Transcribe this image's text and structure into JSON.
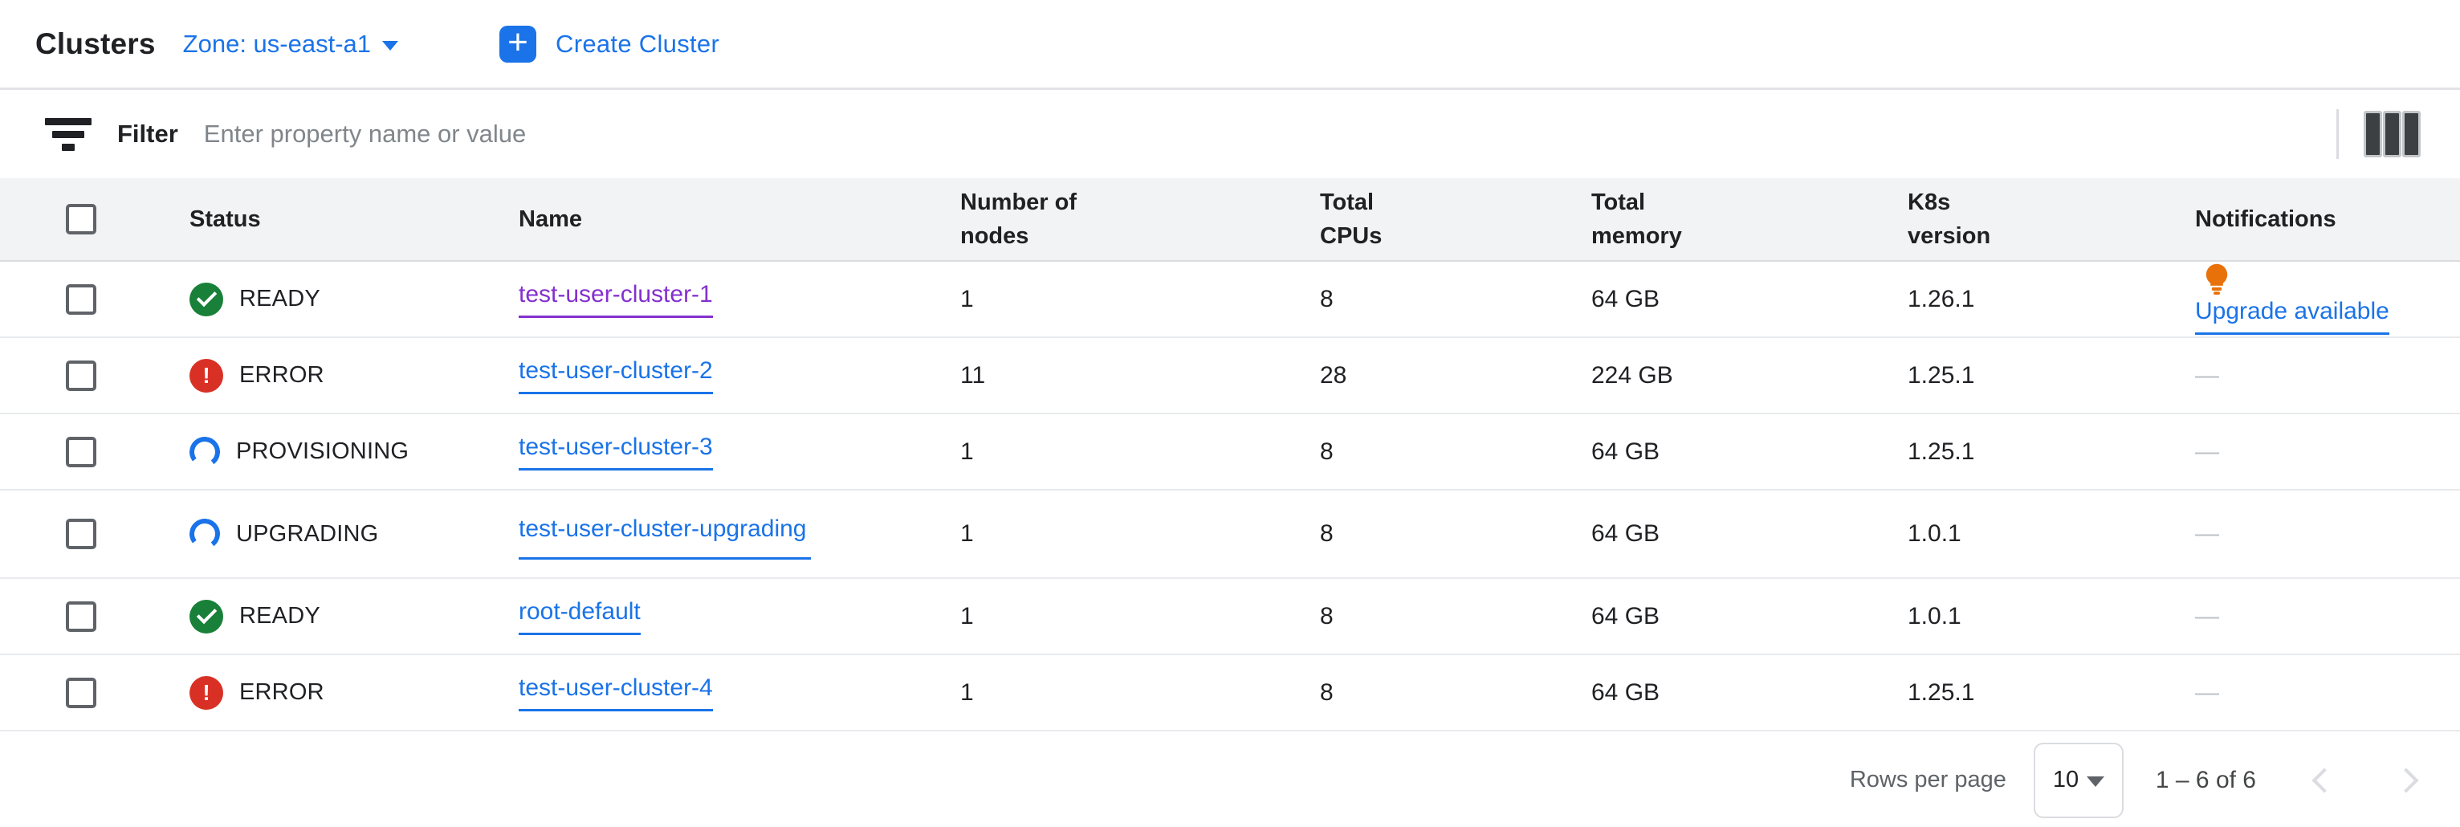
{
  "header": {
    "title": "Clusters",
    "zone_label": "Zone: us-east-a1",
    "create_button_label": "Create Cluster"
  },
  "filter": {
    "label": "Filter",
    "placeholder": "Enter property name or value"
  },
  "table": {
    "columns": [
      "Status",
      "Name",
      "Number of nodes",
      "Total CPUs",
      "Total memory",
      "K8s version",
      "Notifications"
    ],
    "rows": [
      {
        "status": "READY",
        "status_kind": "ready",
        "name": "test-user-cluster-1",
        "visited": true,
        "name_wrap": false,
        "nodes": "1",
        "cpus": "8",
        "memory": "64 GB",
        "k8s": "1.26.1",
        "notification": "Upgrade available",
        "notification_type": "upgrade"
      },
      {
        "status": "ERROR",
        "status_kind": "error",
        "name": "test-user-cluster-2",
        "visited": false,
        "name_wrap": false,
        "nodes": "11",
        "cpus": "28",
        "memory": "224 GB",
        "k8s": "1.25.1",
        "notification": "—",
        "notification_type": "none"
      },
      {
        "status": "PROVISIONING",
        "status_kind": "progress",
        "name": "test-user-cluster-3",
        "visited": false,
        "name_wrap": false,
        "nodes": "1",
        "cpus": "8",
        "memory": "64 GB",
        "k8s": "1.25.1",
        "notification": "—",
        "notification_type": "none"
      },
      {
        "status": "UPGRADING",
        "status_kind": "progress",
        "name": "test-user-cluster-upgrading",
        "visited": false,
        "name_wrap": true,
        "nodes": "1",
        "cpus": "8",
        "memory": "64 GB",
        "k8s": "1.0.1",
        "notification": "—",
        "notification_type": "none"
      },
      {
        "status": "READY",
        "status_kind": "ready",
        "name": "root-default",
        "visited": false,
        "name_wrap": false,
        "nodes": "1",
        "cpus": "8",
        "memory": "64 GB",
        "k8s": "1.0.1",
        "notification": "—",
        "notification_type": "none"
      },
      {
        "status": "ERROR",
        "status_kind": "error",
        "name": "test-user-cluster-4",
        "visited": false,
        "name_wrap": false,
        "nodes": "1",
        "cpus": "8",
        "memory": "64 GB",
        "k8s": "1.25.1",
        "notification": "—",
        "notification_type": "none"
      }
    ]
  },
  "footer": {
    "rows_per_page_label": "Rows per page",
    "rows_per_page_value": "10",
    "range_label": "1 – 6 of 6"
  },
  "colors": {
    "accent_blue": "#1a73e8",
    "visited_purple": "#8430ce",
    "status_green": "#188038",
    "status_red": "#d93025",
    "bulb_orange": "#e8710a",
    "header_bg": "#f1f3f4",
    "muted_grey": "#5f6368",
    "disabled_grey": "#dadce0"
  }
}
